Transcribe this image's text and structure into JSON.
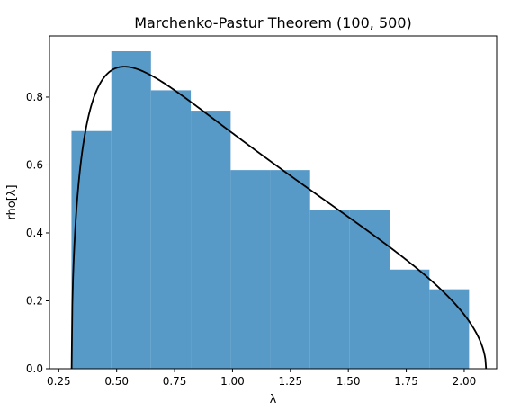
{
  "chart_data": {
    "type": "bar",
    "title": "Marchenko-Pastur Theorem (100, 500)",
    "xlabel": "λ",
    "ylabel": "rho[λ]",
    "xlim": [
      0.21,
      2.14
    ],
    "ylim": [
      0,
      0.98
    ],
    "grid": false,
    "x_ticks": [
      0.25,
      0.5,
      0.75,
      1.0,
      1.25,
      1.5,
      1.75,
      2.0
    ],
    "x_tick_labels": [
      "0.25",
      "0.50",
      "0.75",
      "1.00",
      "1.25",
      "1.50",
      "1.75",
      "2.00"
    ],
    "y_ticks": [
      0.0,
      0.2,
      0.4,
      0.6,
      0.8
    ],
    "y_tick_labels": [
      "0.0",
      "0.2",
      "0.4",
      "0.6",
      "0.8"
    ],
    "histogram": {
      "color": "#5799c7",
      "bin_edges": [
        0.305,
        0.477,
        0.648,
        0.82,
        0.992,
        1.163,
        1.335,
        1.506,
        1.678,
        1.85,
        2.021
      ],
      "values": [
        0.7,
        0.935,
        0.82,
        0.76,
        0.585,
        0.585,
        0.468,
        0.468,
        0.292,
        0.234
      ]
    },
    "density_curve": {
      "color": "#000000",
      "formula": "Marchenko-Pastur density, ratio 100/500",
      "lambda_min": 0.3056,
      "lambda_max": 2.0944,
      "ratio": 0.2
    }
  }
}
